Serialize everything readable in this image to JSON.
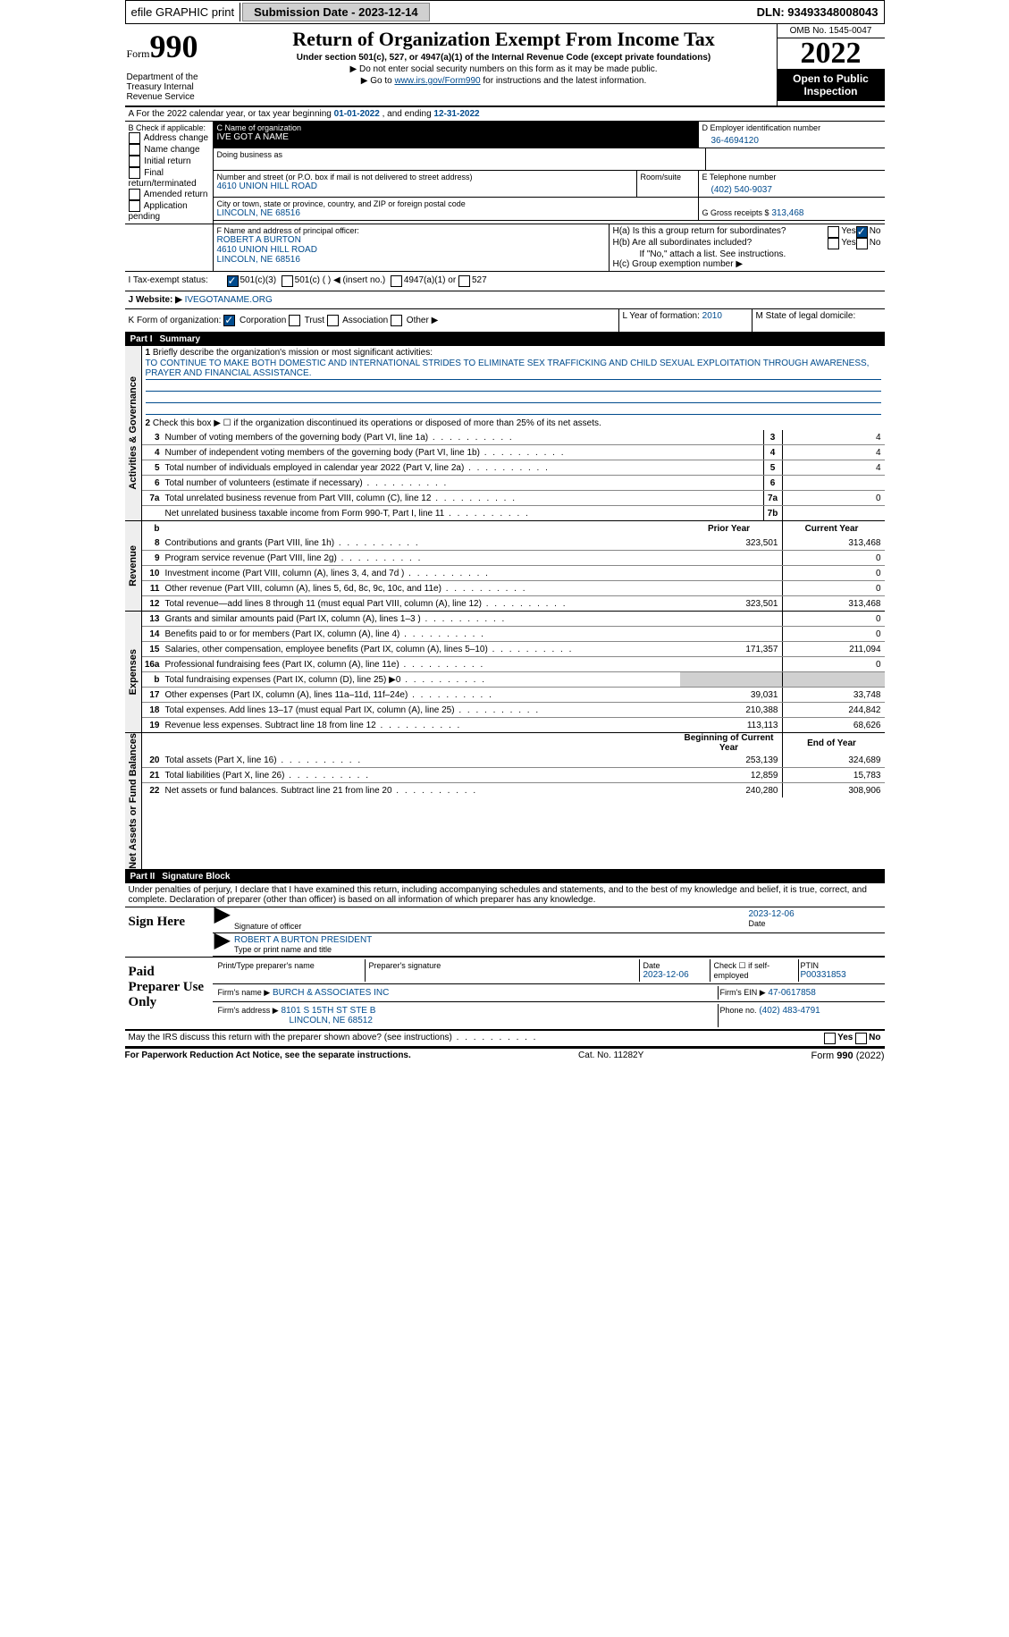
{
  "topbar": {
    "efile": "efile GRAPHIC print",
    "submission_label": "Submission Date - 2023-12-14",
    "dln_label": "DLN: 93493348008043"
  },
  "header": {
    "form_word": "Form",
    "form_num": "990",
    "dept": "Department of the Treasury Internal Revenue Service",
    "title": "Return of Organization Exempt From Income Tax",
    "subtitle": "Under section 501(c), 527, or 4947(a)(1) of the Internal Revenue Code (except private foundations)",
    "note1": "▶ Do not enter social security numbers on this form as it may be made public.",
    "note2_pre": "▶ Go to ",
    "note2_link": "www.irs.gov/Form990",
    "note2_post": " for instructions and the latest information.",
    "omb": "OMB No. 1545-0047",
    "year": "2022",
    "inspect": "Open to Public Inspection"
  },
  "period": {
    "text_pre": "A For the 2022 calendar year, or tax year beginning ",
    "begin": "01-01-2022",
    "mid": " , and ending ",
    "end": "12-31-2022"
  },
  "blockB": {
    "label": "B Check if applicable:",
    "items": [
      "Address change",
      "Name change",
      "Initial return",
      "Final return/terminated",
      "Amended return",
      "Application pending"
    ]
  },
  "blockC": {
    "name_label": "C Name of organization",
    "name": "IVE GOT A NAME",
    "dba_label": "Doing business as",
    "addr_label": "Number and street (or P.O. box if mail is not delivered to street address)",
    "room_label": "Room/suite",
    "addr": "4610 UNION HILL ROAD",
    "city_label": "City or town, state or province, country, and ZIP or foreign postal code",
    "city": "LINCOLN, NE  68516"
  },
  "blockD": {
    "label": "D Employer identification number",
    "val": "36-4694120"
  },
  "blockE": {
    "label": "E Telephone number",
    "val": "(402) 540-9037"
  },
  "blockG": {
    "label": "G Gross receipts $",
    "val": "313,468"
  },
  "blockF": {
    "label": "F  Name and address of principal officer:",
    "name": "ROBERT A BURTON",
    "addr": "4610 UNION HILL ROAD",
    "city": "LINCOLN, NE  68516"
  },
  "blockH": {
    "a": "H(a)  Is this a group return for subordinates?",
    "b": "H(b)  Are all subordinates included?",
    "bno": "If \"No,\" attach a list. See instructions.",
    "c": "H(c)  Group exemption number ▶",
    "yes": "Yes",
    "no": "No"
  },
  "blockI": {
    "label": "I  Tax-exempt status:",
    "c3": "501(c)(3)",
    "c": "501(c) (  ) ◀ (insert no.)",
    "a1": "4947(a)(1) or",
    "s527": "527"
  },
  "blockJ": {
    "label": "J  Website: ▶",
    "val": "IVEGOTANAME.ORG"
  },
  "blockK": {
    "label": "K Form of organization:",
    "corp": "Corporation",
    "trust": "Trust",
    "assoc": "Association",
    "other": "Other ▶"
  },
  "blockL": {
    "label": "L Year of formation:",
    "val": "2010"
  },
  "blockM": {
    "label": "M State of legal domicile:",
    "val": ""
  },
  "part1": {
    "num": "Part I",
    "title": "Summary"
  },
  "mission": {
    "label": "Briefly describe the organization's mission or most significant activities:",
    "text": "TO CONTINUE TO MAKE BOTH DOMESTIC AND INTERNATIONAL STRIDES TO ELIMINATE SEX TRAFFICKING AND CHILD SEXUAL EXPLOITATION THROUGH AWARENESS, PRAYER AND FINANCIAL ASSISTANCE."
  },
  "line2": "Check this box ▶ ☐ if the organization discontinued its operations or disposed of more than 25% of its net assets.",
  "summary_lines": [
    {
      "n": "3",
      "t": "Number of voting members of the governing body (Part VI, line 1a)",
      "box": "3",
      "v": "4"
    },
    {
      "n": "4",
      "t": "Number of independent voting members of the governing body (Part VI, line 1b)",
      "box": "4",
      "v": "4"
    },
    {
      "n": "5",
      "t": "Total number of individuals employed in calendar year 2022 (Part V, line 2a)",
      "box": "5",
      "v": "4"
    },
    {
      "n": "6",
      "t": "Total number of volunteers (estimate if necessary)",
      "box": "6",
      "v": ""
    },
    {
      "n": "7a",
      "t": "Total unrelated business revenue from Part VIII, column (C), line 12",
      "box": "7a",
      "v": "0"
    },
    {
      "n": "",
      "t": "Net unrelated business taxable income from Form 990-T, Part I, line 11",
      "box": "7b",
      "v": ""
    }
  ],
  "cols": {
    "prior": "Prior Year",
    "current": "Current Year"
  },
  "revenue_label": "Revenue",
  "revenue": [
    {
      "n": "8",
      "t": "Contributions and grants (Part VIII, line 1h)",
      "p": "323,501",
      "c": "313,468"
    },
    {
      "n": "9",
      "t": "Program service revenue (Part VIII, line 2g)",
      "p": "",
      "c": "0"
    },
    {
      "n": "10",
      "t": "Investment income (Part VIII, column (A), lines 3, 4, and 7d )",
      "p": "",
      "c": "0"
    },
    {
      "n": "11",
      "t": "Other revenue (Part VIII, column (A), lines 5, 6d, 8c, 9c, 10c, and 11e)",
      "p": "",
      "c": "0"
    },
    {
      "n": "12",
      "t": "Total revenue—add lines 8 through 11 (must equal Part VIII, column (A), line 12)",
      "p": "323,501",
      "c": "313,468"
    }
  ],
  "expenses_label": "Expenses",
  "expenses": [
    {
      "n": "13",
      "t": "Grants and similar amounts paid (Part IX, column (A), lines 1–3 )",
      "p": "",
      "c": "0"
    },
    {
      "n": "14",
      "t": "Benefits paid to or for members (Part IX, column (A), line 4)",
      "p": "",
      "c": "0"
    },
    {
      "n": "15",
      "t": "Salaries, other compensation, employee benefits (Part IX, column (A), lines 5–10)",
      "p": "171,357",
      "c": "211,094"
    },
    {
      "n": "16a",
      "t": "Professional fundraising fees (Part IX, column (A), line 11e)",
      "p": "",
      "c": "0"
    },
    {
      "n": "b",
      "t": "Total fundraising expenses (Part IX, column (D), line 25) ▶0",
      "p": "shaded",
      "c": "shaded"
    },
    {
      "n": "17",
      "t": "Other expenses (Part IX, column (A), lines 11a–11d, 11f–24e)",
      "p": "39,031",
      "c": "33,748"
    },
    {
      "n": "18",
      "t": "Total expenses. Add lines 13–17 (must equal Part IX, column (A), line 25)",
      "p": "210,388",
      "c": "244,842"
    },
    {
      "n": "19",
      "t": "Revenue less expenses. Subtract line 18 from line 12",
      "p": "113,113",
      "c": "68,626"
    }
  ],
  "net_label": "Net Assets or Fund Balances",
  "net_cols": {
    "begin": "Beginning of Current Year",
    "end": "End of Year"
  },
  "net": [
    {
      "n": "20",
      "t": "Total assets (Part X, line 16)",
      "p": "253,139",
      "c": "324,689"
    },
    {
      "n": "21",
      "t": "Total liabilities (Part X, line 26)",
      "p": "12,859",
      "c": "15,783"
    },
    {
      "n": "22",
      "t": "Net assets or fund balances. Subtract line 21 from line 20",
      "p": "240,280",
      "c": "308,906"
    }
  ],
  "part2": {
    "num": "Part II",
    "title": "Signature Block"
  },
  "penalties": "Under penalties of perjury, I declare that I have examined this return, including accompanying schedules and statements, and to the best of my knowledge and belief, it is true, correct, and complete. Declaration of preparer (other than officer) is based on all information of which preparer has any knowledge.",
  "sign": {
    "here": "Sign Here",
    "sig_label": "Signature of officer",
    "date_label": "Date",
    "date": "2023-12-06",
    "name": "ROBERT A BURTON  PRESIDENT",
    "name_label": "Type or print name and title"
  },
  "preparer": {
    "title": "Paid Preparer Use Only",
    "name_label": "Print/Type preparer's name",
    "sig_label": "Preparer's signature",
    "date_label": "Date",
    "date": "2023-12-06",
    "check_label": "Check ☐ if self-employed",
    "ptin_label": "PTIN",
    "ptin": "P00331853",
    "firm_name_label": "Firm's name    ▶",
    "firm_name": "BURCH & ASSOCIATES INC",
    "firm_ein_label": "Firm's EIN ▶",
    "firm_ein": "47-0617858",
    "firm_addr_label": "Firm's address ▶",
    "firm_addr": "8101 S 15TH ST STE B",
    "firm_city": "LINCOLN, NE  68512",
    "phone_label": "Phone no.",
    "phone": "(402) 483-4791"
  },
  "discuss": "May the IRS discuss this return with the preparer shown above? (see instructions)",
  "footer": {
    "l": "For Paperwork Reduction Act Notice, see the separate instructions.",
    "m": "Cat. No. 11282Y",
    "r": "Form 990 (2022)"
  }
}
